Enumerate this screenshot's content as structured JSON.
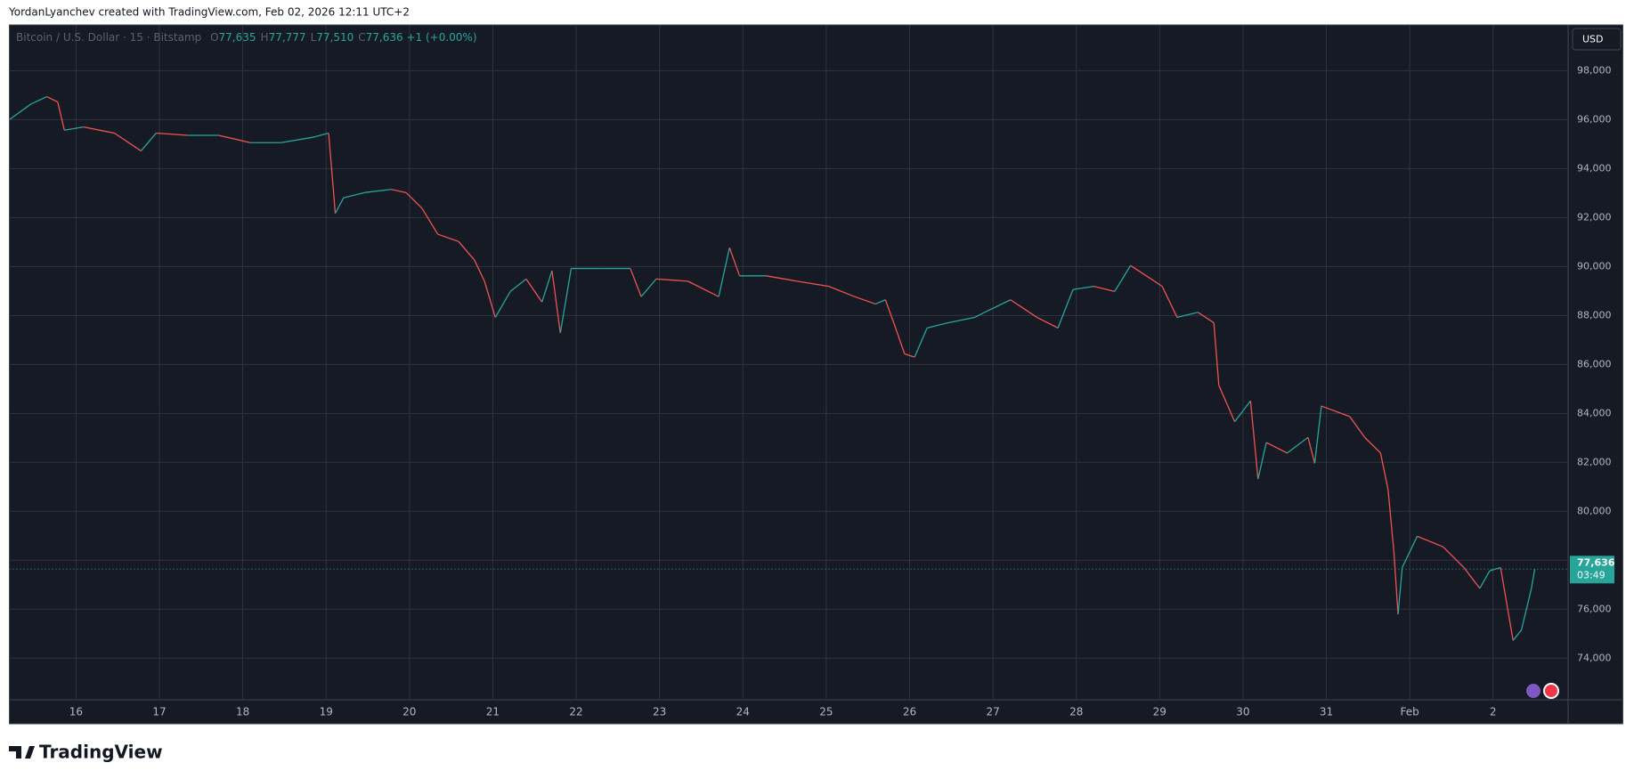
{
  "header": "YordanLyanchev created with TradingView.com, Feb 02, 2026 12:11 UTC+2",
  "footer": "TradingView",
  "chart_data": {
    "type": "line",
    "symbol": "Bitcoin / U.S. Dollar · 15 · Bitstamp",
    "ohlc": [
      {
        "key": "O",
        "value": "77,635"
      },
      {
        "key": "H",
        "value": "77,777"
      },
      {
        "key": "L",
        "value": "77,510"
      },
      {
        "key": "C",
        "value": "77,636"
      }
    ],
    "change": "+1 (+0.00%)",
    "currency": "USD",
    "last_price": {
      "value": 77636,
      "label": "77,636"
    },
    "countdown": "03:49",
    "up_color": "#26a69a",
    "down_color": "#ef5350",
    "grid": true,
    "x": [
      15.2,
      15.46,
      15.65,
      15.78,
      15.86,
      16.09,
      16.46,
      16.78,
      16.96,
      17.34,
      17.71,
      18.09,
      18.46,
      18.84,
      19.03,
      19.09,
      19.11,
      19.21,
      19.46,
      19.78,
      19.96,
      20.15,
      20.34,
      20.59,
      20.78,
      20.9,
      21.03,
      21.21,
      21.4,
      21.59,
      21.71,
      21.81,
      21.94,
      22.28,
      22.65,
      22.78,
      22.96,
      23.34,
      23.71,
      23.84,
      23.96,
      24.28,
      24.65,
      25.03,
      25.34,
      25.59,
      25.71,
      25.81,
      25.94,
      26.06,
      26.21,
      26.46,
      26.78,
      26.9,
      27.21,
      27.53,
      27.78,
      27.96,
      28.21,
      28.46,
      28.65,
      28.84,
      29.03,
      29.21,
      29.46,
      29.65,
      29.71,
      29.9,
      30.09,
      30.18,
      30.28,
      30.53,
      30.78,
      30.86,
      30.94,
      31.28,
      31.46,
      31.65,
      31.74,
      31.81,
      31.86,
      31.91,
      32.09,
      32.4,
      32.65,
      32.84,
      32.96,
      33.09,
      33.24,
      33.34,
      33.46,
      33.5
    ],
    "values": [
      96000,
      96640,
      96940,
      96720,
      95570,
      95700,
      95450,
      94720,
      95450,
      95360,
      95360,
      95060,
      95060,
      95280,
      95450,
      93020,
      92170,
      92810,
      93020,
      93150,
      93020,
      92380,
      91320,
      91020,
      90260,
      89400,
      87920,
      88980,
      89490,
      88550,
      89830,
      87280,
      89920,
      89920,
      89920,
      88770,
      89490,
      89400,
      88770,
      90770,
      89620,
      89620,
      89400,
      89190,
      88770,
      88470,
      88640,
      87700,
      86430,
      86300,
      87490,
      87700,
      87920,
      88130,
      88640,
      87920,
      87490,
      89060,
      89190,
      88980,
      90040,
      89620,
      89190,
      87920,
      88130,
      87700,
      85150,
      83660,
      84510,
      81320,
      82810,
      82380,
      83020,
      81960,
      84300,
      83870,
      83020,
      82380,
      80890,
      78340,
      75790,
      77700,
      78980,
      78550,
      77700,
      76850,
      77570,
      77700,
      74720,
      75150,
      76850,
      77636
    ],
    "xlim": [
      15.2,
      33.9
    ],
    "xticks": [
      16,
      17,
      18,
      19,
      20,
      21,
      22,
      23,
      24,
      25,
      26,
      27,
      28,
      29,
      30,
      31,
      {
        "value": 32,
        "label": "Feb"
      },
      {
        "value": 33,
        "label": "2"
      }
    ],
    "ylim": [
      72300,
      99870
    ],
    "yticks": [
      {
        "value": 74000,
        "label": "74,000"
      },
      {
        "value": 76000,
        "label": "76,000"
      },
      {
        "value": 78000,
        "label": "78,000"
      },
      {
        "value": 80000,
        "label": "80,000"
      },
      {
        "value": 82000,
        "label": "82,000"
      },
      {
        "value": 84000,
        "label": "84,000"
      },
      {
        "value": 86000,
        "label": "86,000"
      },
      {
        "value": 88000,
        "label": "88,000"
      },
      {
        "value": 90000,
        "label": "90,000"
      },
      {
        "value": 92000,
        "label": "92,000"
      },
      {
        "value": 94000,
        "label": "94,000"
      },
      {
        "value": 96000,
        "label": "96,000"
      },
      {
        "value": 98000,
        "label": "98,000"
      }
    ]
  }
}
